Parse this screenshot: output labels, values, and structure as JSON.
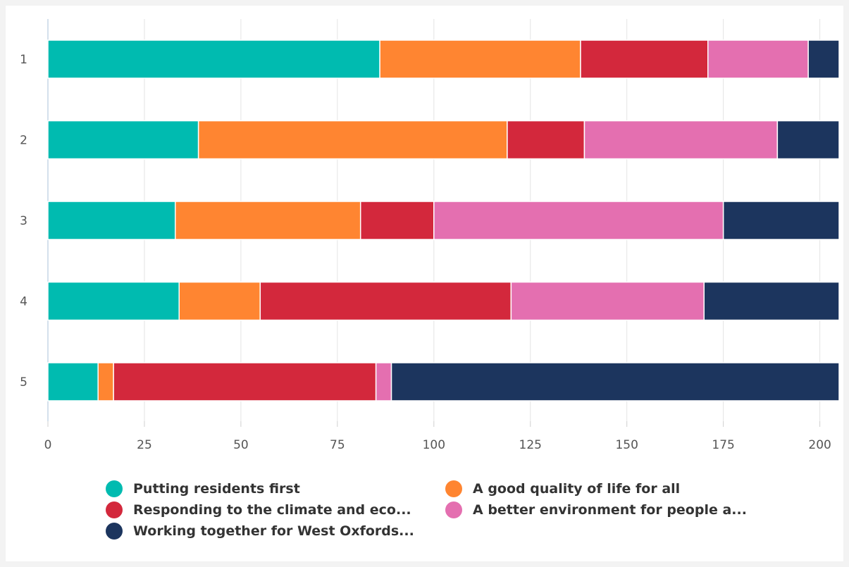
{
  "chart_data": {
    "type": "bar",
    "orientation": "horizontal",
    "stacked": true,
    "categories": [
      "1",
      "2",
      "3",
      "4",
      "5"
    ],
    "xlim": [
      0,
      205
    ],
    "x_ticks": [
      "0",
      "25",
      "50",
      "75",
      "100",
      "125",
      "150",
      "175",
      "200"
    ],
    "grid": true,
    "legend_position": "bottom",
    "series": [
      {
        "name": "Putting residents first",
        "color": "#00bbb0",
        "values": [
          86,
          39,
          33,
          34,
          13
        ]
      },
      {
        "name": "A good quality of life for all",
        "color": "#ff8531",
        "values": [
          52,
          80,
          48,
          21,
          4
        ]
      },
      {
        "name": "Responding to the climate and eco...",
        "color": "#d3283c",
        "values": [
          33,
          20,
          19,
          65,
          68
        ]
      },
      {
        "name": "A better environment for people a...",
        "color": "#e46fb0",
        "values": [
          26,
          50,
          75,
          50,
          4
        ]
      },
      {
        "name": "Working together for West Oxfords...",
        "color": "#1c355e",
        "values": [
          8,
          16,
          30,
          35,
          116
        ]
      }
    ]
  }
}
